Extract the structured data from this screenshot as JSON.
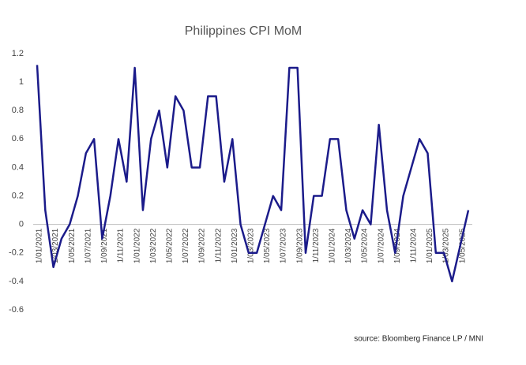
{
  "chart_data": {
    "type": "line",
    "title": "Philippines CPI MoM",
    "source": "source: Bloomberg Finance LP / MNI",
    "categories": [
      "1/01/2021",
      null,
      "1/03/2021",
      null,
      "1/05/2021",
      null,
      "1/07/2021",
      null,
      "1/09/2021",
      null,
      "1/11/2021",
      null,
      "1/01/2022",
      null,
      "1/03/2022",
      null,
      "1/05/2022",
      null,
      "1/07/2022",
      null,
      "1/09/2022",
      null,
      "1/11/2022",
      null,
      "1/01/2023",
      null,
      "1/03/2023",
      null,
      "1/05/2023",
      null,
      "1/07/2023",
      null,
      "1/09/2023",
      null,
      "1/11/2023",
      null,
      "1/01/2024",
      null,
      "1/03/2024",
      null,
      "1/05/2024",
      null,
      "1/07/2024",
      null,
      "1/09/2024",
      null,
      "1/11/2024",
      null,
      "1/01/2025",
      null,
      "1/03/2025",
      null,
      "1/05/2025",
      null
    ],
    "series": [
      {
        "name": "CPI MoM",
        "color": "#1b1b8a",
        "values": [
          1.12,
          0.1,
          -0.3,
          -0.1,
          0.0,
          0.2,
          0.5,
          0.6,
          -0.1,
          0.2,
          0.6,
          0.3,
          1.1,
          0.1,
          0.6,
          0.8,
          0.4,
          0.9,
          0.8,
          0.4,
          0.4,
          0.9,
          0.9,
          0.3,
          0.6,
          0.0,
          -0.2,
          -0.2,
          0.0,
          0.2,
          0.1,
          1.1,
          1.1,
          -0.2,
          0.2,
          0.2,
          0.6,
          0.6,
          0.1,
          -0.1,
          0.1,
          0.0,
          0.7,
          0.1,
          -0.2,
          0.2,
          0.4,
          0.6,
          0.5,
          -0.2,
          -0.2,
          -0.4,
          -0.15,
          0.1
        ]
      }
    ],
    "ylim": [
      -0.6,
      1.2
    ],
    "yticks": [
      1.2,
      1,
      0.8,
      0.6,
      0.4,
      0.2,
      0,
      -0.2,
      -0.4,
      -0.6
    ],
    "grid": false
  }
}
